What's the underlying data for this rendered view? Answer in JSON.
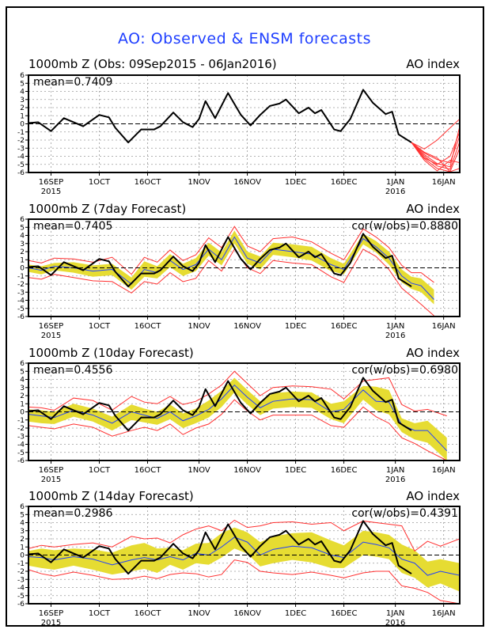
{
  "title": "AO: Observed & ENSM forecasts",
  "colors": {
    "title": "#1f3fff",
    "observed": "#000000",
    "ensemble_mean": "#1f3fff",
    "spread_band": "#e6dc32",
    "envelope": "#ff3030",
    "grid": "#9a9a9a"
  },
  "chart_data": [
    {
      "type": "line",
      "title": "1000mb Z (Obs: 09Sep2015 - 06Jan2016)",
      "right_label": "AO index",
      "stat_label": "mean=0.7409",
      "corr_label": "",
      "ylabel": "AO index",
      "ylim": [
        -6,
        6
      ],
      "yticks": [
        -6,
        -5,
        -4,
        -3,
        -2,
        -1,
        0,
        1,
        2,
        3,
        4,
        5,
        6
      ],
      "xlim_days": [
        0,
        134
      ],
      "x_start": "09Sep2015",
      "xticks": [
        {
          "day": 7,
          "label": "16SEP",
          "sub": "2015"
        },
        {
          "day": 22,
          "label": "1OCT",
          "sub": ""
        },
        {
          "day": 37,
          "label": "16OCT",
          "sub": ""
        },
        {
          "day": 53,
          "label": "1NOV",
          "sub": ""
        },
        {
          "day": 68,
          "label": "16NOV",
          "sub": ""
        },
        {
          "day": 83,
          "label": "1DEC",
          "sub": ""
        },
        {
          "day": 98,
          "label": "16DEC",
          "sub": ""
        },
        {
          "day": 114,
          "label": "1JAN",
          "sub": "2016"
        },
        {
          "day": 129,
          "label": "16JAN",
          "sub": ""
        }
      ],
      "grid": true,
      "zero_line": true,
      "observed": {
        "days": [
          0,
          3,
          7,
          11,
          17,
          22,
          25,
          27,
          31,
          35,
          39,
          41,
          45,
          48,
          51,
          53,
          55,
          58,
          62,
          66,
          69,
          72,
          75,
          78,
          80,
          84,
          87,
          89,
          91,
          95,
          97,
          100,
          104,
          107,
          111,
          113,
          115,
          119
        ],
        "values": [
          0.1,
          0.2,
          -0.9,
          0.7,
          -0.3,
          1.1,
          0.8,
          -0.5,
          -2.3,
          -0.7,
          -0.7,
          -0.3,
          1.4,
          0.2,
          -0.4,
          0.6,
          2.8,
          0.7,
          3.8,
          1.1,
          -0.2,
          1.1,
          2.2,
          2.5,
          3.0,
          1.3,
          2.0,
          1.3,
          1.7,
          -0.7,
          -0.9,
          0.6,
          4.2,
          2.6,
          1.2,
          1.5,
          -1.3,
          -2.3
        ]
      },
      "forecast_members": {
        "start_day": 119,
        "start_value": -2.3,
        "members": [
          {
            "days": [
              119,
              123,
              127,
              131,
              134
            ],
            "values": [
              -2.3,
              -3.1,
              -2.0,
              -0.5,
              0.6
            ]
          },
          {
            "days": [
              119,
              123,
              127,
              131,
              134
            ],
            "values": [
              -2.3,
              -3.6,
              -4.4,
              -4.8,
              -1.5
            ]
          },
          {
            "days": [
              119,
              123,
              127,
              131,
              134
            ],
            "values": [
              -2.3,
              -4.0,
              -5.2,
              -5.6,
              -2.2
            ]
          },
          {
            "days": [
              119,
              123,
              127,
              131,
              134
            ],
            "values": [
              -2.3,
              -4.3,
              -5.5,
              -5.9,
              -3.0
            ]
          },
          {
            "days": [
              119,
              123,
              127,
              131,
              134
            ],
            "values": [
              -2.3,
              -3.8,
              -4.9,
              -5.3,
              -0.3
            ]
          },
          {
            "days": [
              119,
              123,
              127,
              131,
              134
            ],
            "values": [
              -2.3,
              -4.5,
              -5.8,
              -4.5,
              -4.8
            ]
          },
          {
            "days": [
              119,
              123,
              127,
              131,
              134
            ],
            "values": [
              -2.3,
              -3.5,
              -4.2,
              -5.9,
              -5.5
            ]
          },
          {
            "days": [
              119,
              123,
              127,
              131,
              134
            ],
            "values": [
              -2.3,
              -4.2,
              -5.0,
              -4.0,
              -1.0
            ]
          }
        ]
      }
    },
    {
      "type": "line",
      "title": "1000mb Z (7day Forecast)",
      "right_label": "AO index",
      "stat_label": "mean=0.7405",
      "corr_label": "cor(w/obs)=0.8880",
      "ylim": [
        -6,
        6
      ],
      "lead_days": 7,
      "series": [
        {
          "name": "observed"
        },
        {
          "name": "ensemble_mean",
          "days": [
            0,
            4,
            8,
            14,
            20,
            26,
            32,
            36,
            40,
            44,
            48,
            52,
            56,
            60,
            64,
            68,
            72,
            76,
            82,
            88,
            94,
            98,
            104,
            108,
            112,
            116,
            119,
            122,
            126
          ],
          "values": [
            0.0,
            -0.3,
            0.2,
            0.0,
            -0.4,
            -0.2,
            -2.0,
            -0.2,
            -0.6,
            0.9,
            -0.2,
            0.4,
            2.3,
            1.0,
            3.8,
            1.2,
            0.6,
            2.3,
            2.0,
            1.7,
            0.4,
            -0.2,
            3.6,
            2.6,
            1.2,
            -1.0,
            -1.9,
            -2.2,
            -3.9
          ]
        },
        {
          "name": "spread_upper",
          "values": [
            0.4,
            0.2,
            0.6,
            0.7,
            0.3,
            0.5,
            -1.2,
            0.8,
            0.2,
            1.7,
            0.5,
            1.2,
            3.1,
            1.9,
            4.6,
            2.0,
            1.4,
            3.1,
            2.9,
            2.6,
            1.2,
            0.5,
            4.2,
            3.3,
            2.0,
            -0.2,
            -1.1,
            -1.3,
            -2.7
          ]
        },
        {
          "name": "spread_lower",
          "values": [
            -0.5,
            -0.8,
            -0.3,
            -0.6,
            -1.1,
            -0.9,
            -2.7,
            -1.1,
            -1.3,
            0.1,
            -1.0,
            -0.4,
            1.5,
            0.3,
            3.0,
            0.5,
            -0.2,
            1.6,
            1.3,
            0.9,
            -0.4,
            -0.8,
            2.9,
            1.9,
            0.4,
            -1.8,
            -2.6,
            -3.0,
            -4.5
          ]
        },
        {
          "name": "envelope_max",
          "values": [
            0.9,
            0.6,
            1.2,
            1.1,
            0.7,
            1.3,
            -0.8,
            1.3,
            0.7,
            2.2,
            0.9,
            1.6,
            3.7,
            2.5,
            5.1,
            2.7,
            2.0,
            3.6,
            3.8,
            3.2,
            1.8,
            1.0,
            4.8,
            3.8,
            2.5,
            0.3,
            -0.6,
            -0.6,
            -1.8
          ]
        },
        {
          "name": "envelope_min",
          "values": [
            -1.2,
            -1.4,
            -0.8,
            -1.2,
            -1.6,
            -1.7,
            -3.1,
            -1.7,
            -2.0,
            -0.6,
            -1.7,
            -1.3,
            0.9,
            -0.4,
            2.3,
            0.0,
            -0.7,
            0.9,
            0.6,
            0.4,
            -1.1,
            -1.8,
            2.3,
            1.4,
            -0.2,
            -2.5,
            -3.5,
            -4.5,
            -5.9
          ]
        }
      ]
    },
    {
      "type": "line",
      "title": "1000mb Z (10day Forecast)",
      "right_label": "AO index",
      "stat_label": "mean=0.4556",
      "corr_label": "cor(w/obs)=0.6980",
      "ylim": [
        -6,
        6
      ],
      "lead_days": 10,
      "series": [
        {
          "name": "observed"
        },
        {
          "name": "ensemble_mean",
          "days": [
            0,
            4,
            8,
            14,
            20,
            26,
            32,
            36,
            40,
            44,
            48,
            52,
            56,
            60,
            64,
            68,
            72,
            76,
            82,
            88,
            94,
            98,
            104,
            108,
            112,
            116,
            120,
            124,
            130
          ],
          "values": [
            -0.3,
            -0.5,
            -0.7,
            0.2,
            -0.4,
            -1.4,
            0.0,
            -0.4,
            -0.8,
            0.0,
            -1.1,
            -0.5,
            0.3,
            1.6,
            3.3,
            1.8,
            0.5,
            1.3,
            1.6,
            1.5,
            0.0,
            0.3,
            2.7,
            1.3,
            1.2,
            -1.6,
            -2.3,
            -2.3,
            -4.8
          ]
        },
        {
          "name": "spread_upper",
          "values": [
            0.3,
            0.2,
            0.0,
            1.0,
            0.4,
            -0.6,
            0.9,
            0.4,
            0.0,
            0.9,
            -0.2,
            0.4,
            1.4,
            2.6,
            4.2,
            2.7,
            1.3,
            2.3,
            2.5,
            2.4,
            1.0,
            1.3,
            3.2,
            3.1,
            2.7,
            -0.8,
            -1.4,
            -1.1,
            -3.2
          ]
        },
        {
          "name": "spread_lower",
          "values": [
            -1.2,
            -1.4,
            -1.5,
            -0.6,
            -1.2,
            -2.3,
            -1.0,
            -1.3,
            -1.6,
            -0.9,
            -2.0,
            -1.4,
            -0.7,
            0.6,
            2.4,
            0.9,
            -0.4,
            0.4,
            0.6,
            0.5,
            -0.9,
            -1.4,
            1.5,
            0.2,
            -0.3,
            -2.5,
            -3.4,
            -3.8,
            -6.0
          ]
        },
        {
          "name": "envelope_max",
          "values": [
            0.6,
            0.5,
            0.2,
            1.7,
            1.4,
            0.2,
            1.9,
            1.2,
            1.0,
            1.9,
            0.9,
            1.3,
            2.2,
            3.3,
            5.0,
            3.5,
            2.0,
            3.0,
            3.2,
            3.1,
            2.8,
            1.6,
            3.8,
            4.0,
            4.2,
            0.9,
            0.1,
            0.3,
            -0.5
          ]
        },
        {
          "name": "envelope_min",
          "values": [
            -1.7,
            -1.9,
            -2.1,
            -1.5,
            -1.9,
            -3.0,
            -2.3,
            -1.9,
            -2.3,
            -1.5,
            -2.8,
            -2.0,
            -1.5,
            -0.3,
            1.5,
            0.1,
            -1.0,
            -0.4,
            -0.4,
            -0.4,
            -1.7,
            -1.9,
            0.6,
            -0.6,
            -1.4,
            -3.2,
            -3.9,
            -4.8,
            -6.0
          ]
        }
      ]
    },
    {
      "type": "line",
      "title": "1000mb Z (14day Forecast)",
      "right_label": "AO index",
      "stat_label": "mean=0.2986",
      "corr_label": "cor(w/obs)=0.4391",
      "ylim": [
        -6,
        6
      ],
      "lead_days": 14,
      "series": [
        {
          "name": "observed"
        },
        {
          "name": "ensemble_mean",
          "days": [
            0,
            4,
            8,
            14,
            20,
            26,
            32,
            36,
            40,
            44,
            48,
            52,
            56,
            60,
            64,
            68,
            72,
            76,
            82,
            88,
            94,
            98,
            104,
            108,
            112,
            116,
            120,
            124,
            128,
            134
          ],
          "values": [
            -0.2,
            -0.3,
            -0.6,
            -0.2,
            -0.5,
            -1.2,
            -0.6,
            -0.3,
            -0.6,
            -0.2,
            -0.6,
            0.2,
            0.0,
            1.0,
            2.2,
            1.6,
            0.0,
            0.7,
            1.1,
            0.9,
            0.0,
            -0.3,
            1.6,
            1.3,
            0.9,
            -0.5,
            -1.0,
            -2.5,
            -2.0,
            -2.5
          ]
        },
        {
          "name": "spread_upper",
          "values": [
            0.5,
            0.8,
            0.6,
            0.8,
            0.7,
            0.3,
            1.2,
            1.5,
            0.8,
            0.9,
            0.6,
            1.4,
            1.5,
            2.7,
            3.4,
            2.8,
            1.6,
            2.3,
            2.7,
            2.8,
            1.8,
            1.2,
            3.0,
            2.8,
            2.5,
            1.3,
            0.6,
            -0.8,
            -0.5,
            -1.0
          ]
        },
        {
          "name": "spread_lower",
          "values": [
            -1.3,
            -1.6,
            -1.8,
            -1.3,
            -1.8,
            -2.4,
            -2.0,
            -1.7,
            -2.2,
            -1.2,
            -1.8,
            -1.0,
            -1.2,
            -0.3,
            0.8,
            0.2,
            -1.4,
            -1.0,
            -0.6,
            -0.9,
            -1.6,
            -1.6,
            0.0,
            -0.2,
            -0.5,
            -2.2,
            -2.8,
            -4.0,
            -3.5,
            -4.5
          ]
        },
        {
          "name": "envelope_max",
          "values": [
            0.8,
            1.2,
            1.0,
            1.3,
            1.5,
            1.0,
            2.3,
            2.0,
            2.1,
            1.5,
            2.5,
            3.2,
            3.6,
            3.0,
            4.3,
            3.4,
            3.6,
            4.0,
            4.1,
            3.8,
            4.0,
            3.0,
            4.2,
            4.0,
            3.8,
            3.6,
            0.5,
            1.7,
            1.1,
            2.0
          ]
        },
        {
          "name": "envelope_min",
          "values": [
            -1.8,
            -2.3,
            -2.6,
            -2.1,
            -2.5,
            -3.0,
            -2.9,
            -2.6,
            -2.9,
            -2.4,
            -2.2,
            -2.3,
            -2.7,
            -2.4,
            -0.6,
            -0.9,
            -2.0,
            -2.2,
            -2.4,
            -2.1,
            -2.5,
            -2.8,
            -2.2,
            -2.0,
            -2.0,
            -3.8,
            -4.1,
            -4.6,
            -5.6,
            -6.0
          ]
        }
      ]
    }
  ]
}
